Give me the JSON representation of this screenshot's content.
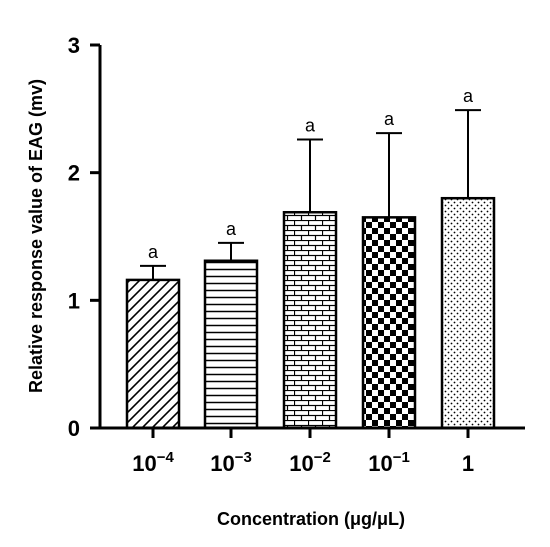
{
  "chart_data": {
    "type": "bar",
    "categories": [
      {
        "base": "10",
        "exp": "−4"
      },
      {
        "base": "10",
        "exp": "−3"
      },
      {
        "base": "10",
        "exp": "−2"
      },
      {
        "base": "10",
        "exp": "−1"
      },
      {
        "base": "1",
        "exp": ""
      }
    ],
    "values": [
      1.16,
      1.31,
      1.69,
      1.65,
      1.8
    ],
    "error_upper": [
      0.11,
      0.14,
      0.57,
      0.66,
      0.69
    ],
    "significance_labels": [
      "a",
      "a",
      "a",
      "a",
      "a"
    ],
    "patterns": [
      "diagonal-stripes",
      "horizontal-stripes",
      "brick",
      "checkerboard",
      "dots"
    ],
    "xlabel": "Concentration (μg/μL)",
    "ylabel": "Relative response value of EAG (mv)",
    "ylim": [
      0,
      3
    ],
    "yticks": [
      "0",
      "1",
      "2",
      "3"
    ],
    "grid": false,
    "colors": {
      "bar_edge": "#000000",
      "pattern": "#000000",
      "background": "#ffffff"
    }
  }
}
